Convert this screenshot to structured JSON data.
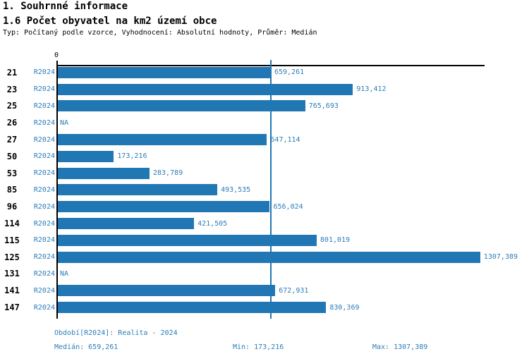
{
  "header": {
    "title1": "1. Souhrnné informace",
    "title2": "1.6 Počet obyvatel na km2 území obce",
    "subtitle": "Typ: Počítaný podle vzorce, Vyhodnocení: Absolutní hodnoty, Průměr: Medián"
  },
  "chart_data": {
    "type": "bar",
    "orientation": "horizontal",
    "title": "1.6 Počet obyvatel na km2 území obce",
    "categories": [
      "21",
      "23",
      "25",
      "26",
      "27",
      "50",
      "53",
      "85",
      "96",
      "114",
      "115",
      "125",
      "131",
      "141",
      "147"
    ],
    "series": [
      {
        "name": "R2024",
        "values": [
          659.261,
          913.412,
          765.693,
          null,
          647.114,
          173.216,
          283.789,
          493.535,
          656.024,
          421.505,
          801.019,
          1307.389,
          null,
          672.931,
          830.369
        ],
        "value_labels": [
          "659,261",
          "913,412",
          "765,693",
          "NA",
          "647,114",
          "173,216",
          "283,789",
          "493,535",
          "656,024",
          "421,505",
          "801,019",
          "1307,389",
          "NA",
          "672,931",
          "830,369"
        ]
      }
    ],
    "xlabel": "",
    "ylabel": "",
    "xlim": [
      0,
      1323
    ],
    "x_axis_ticks": [
      "0"
    ],
    "grid": false,
    "legend_position": "none",
    "median": 659.261,
    "median_label": "659,261",
    "min": 173.216,
    "max": 1307.389
  },
  "footer": {
    "period": "Období[R2024]: Realita - 2024",
    "median": "Medián: 659,261",
    "min": "Min: 173,216",
    "max": "Max: 1307,389"
  },
  "colors": {
    "bar": "#2176b4",
    "median_line": "#2176b4",
    "blue_text": "#2b7db8",
    "axis": "#000000",
    "category_text": "#000000",
    "background": "#ffffff"
  }
}
